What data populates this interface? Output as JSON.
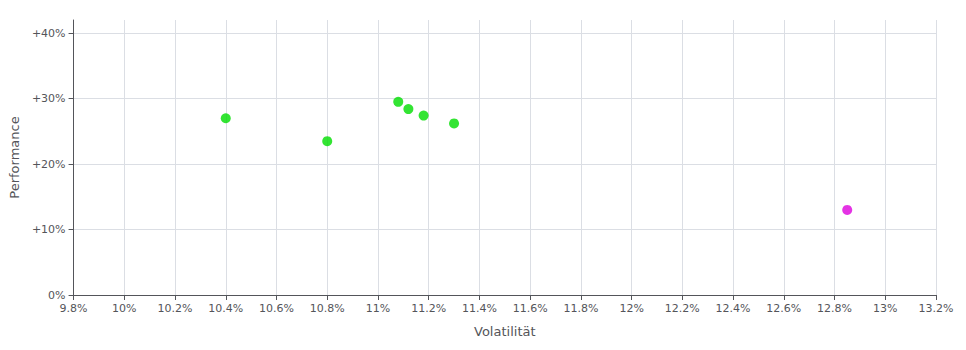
{
  "chart_data": {
    "type": "scatter",
    "xlabel": "Volatilität",
    "ylabel": "Performance",
    "series": [
      {
        "color": "#00dd00",
        "x": [
          0.104,
          0.108,
          0.1108,
          0.1112,
          0.1118,
          0.113
        ],
        "values": [
          0.27,
          0.235,
          0.295,
          0.284,
          0.274,
          0.262
        ]
      },
      {
        "color": "#dd00dd",
        "x": [
          0.1285
        ],
        "values": [
          0.13
        ]
      }
    ],
    "xlim": [
      0.098,
      0.132
    ],
    "xticks": [
      {
        "value": 0.098,
        "label": "9.8%"
      },
      {
        "value": 0.1,
        "label": "10%"
      },
      {
        "value": 0.102,
        "label": "10.2%"
      },
      {
        "value": 0.104,
        "label": "10.4%"
      },
      {
        "value": 0.106,
        "label": "10.6%"
      },
      {
        "value": 0.108,
        "label": "10.8%"
      },
      {
        "value": 0.11,
        "label": "11%"
      },
      {
        "value": 0.112,
        "label": "11.2%"
      },
      {
        "value": 0.114,
        "label": "11.4%"
      },
      {
        "value": 0.116,
        "label": "11.6%"
      },
      {
        "value": 0.118,
        "label": "11.8%"
      },
      {
        "value": 0.12,
        "label": "12%"
      },
      {
        "value": 0.122,
        "label": "12.2%"
      },
      {
        "value": 0.124,
        "label": "12.4%"
      },
      {
        "value": 0.126,
        "label": "12.6%"
      },
      {
        "value": 0.128,
        "label": "12.8%"
      },
      {
        "value": 0.13,
        "label": "13%"
      },
      {
        "value": 0.132,
        "label": "13.2%"
      }
    ],
    "ylim": [
      0.0,
      0.42
    ],
    "yticks": [
      {
        "value": 0.0,
        "label": "0%"
      },
      {
        "value": 0.1,
        "label": "+10%"
      },
      {
        "value": 0.2,
        "label": "+20%"
      },
      {
        "value": 0.3,
        "label": "+30%"
      },
      {
        "value": 0.4,
        "label": "+40%"
      }
    ],
    "grid": true
  }
}
